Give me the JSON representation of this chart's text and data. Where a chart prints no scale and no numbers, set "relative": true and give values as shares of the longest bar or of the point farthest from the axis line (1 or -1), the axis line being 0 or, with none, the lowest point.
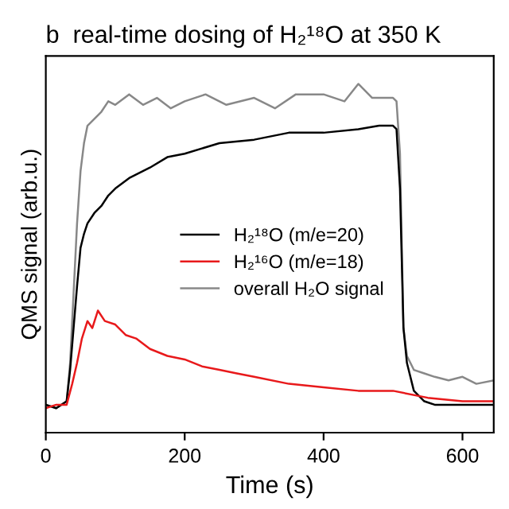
{
  "chart_data": {
    "type": "line",
    "title": "b  real-time dosing of H₂¹⁸O at 350 K",
    "xlabel": "Time (s)",
    "ylabel": "QMS signal (arb.u.)",
    "relative": true,
    "xlim": [
      0,
      645
    ],
    "xticks": [
      0,
      200,
      400,
      600
    ],
    "grid": false,
    "legend": "right",
    "marker": "none",
    "line_style": "solid",
    "series": [
      {
        "name": "overall H₂O signal",
        "color": "#888888",
        "x": [
          0,
          15,
          30,
          35,
          40,
          45,
          50,
          55,
          60,
          70,
          80,
          90,
          100,
          120,
          140,
          160,
          180,
          200,
          230,
          260,
          300,
          330,
          360,
          400,
          430,
          450,
          470,
          500,
          505,
          510,
          515,
          520,
          530,
          545,
          560,
          580,
          600,
          620,
          645
        ],
        "values": [
          0.08,
          0.07,
          0.09,
          0.2,
          0.4,
          0.6,
          0.75,
          0.83,
          0.88,
          0.9,
          0.92,
          0.95,
          0.94,
          0.97,
          0.94,
          0.96,
          0.93,
          0.95,
          0.97,
          0.94,
          0.96,
          0.93,
          0.97,
          0.97,
          0.95,
          1.0,
          0.96,
          0.96,
          0.95,
          0.8,
          0.3,
          0.22,
          0.18,
          0.17,
          0.16,
          0.15,
          0.16,
          0.14,
          0.15
        ]
      },
      {
        "name": "H₂¹⁸O (m/e=20)",
        "color": "#000000",
        "x": [
          0,
          15,
          30,
          35,
          40,
          45,
          50,
          55,
          60,
          70,
          80,
          90,
          100,
          120,
          150,
          175,
          200,
          250,
          300,
          350,
          400,
          450,
          480,
          500,
          505,
          510,
          515,
          520,
          530,
          545,
          560,
          600,
          645
        ],
        "values": [
          0.08,
          0.07,
          0.09,
          0.18,
          0.3,
          0.42,
          0.53,
          0.57,
          0.6,
          0.63,
          0.65,
          0.68,
          0.7,
          0.73,
          0.76,
          0.79,
          0.8,
          0.83,
          0.84,
          0.86,
          0.86,
          0.87,
          0.88,
          0.88,
          0.87,
          0.7,
          0.3,
          0.2,
          0.12,
          0.09,
          0.08,
          0.08,
          0.08
        ]
      },
      {
        "name": "H₂¹⁶O (m/e=18)",
        "color": "#e8191b",
        "x": [
          0,
          15,
          30,
          38,
          45,
          52,
          60,
          67,
          75,
          85,
          100,
          115,
          130,
          150,
          175,
          200,
          225,
          250,
          275,
          300,
          350,
          400,
          450,
          500,
          550,
          600,
          645
        ],
        "values": [
          0.07,
          0.08,
          0.08,
          0.14,
          0.2,
          0.27,
          0.32,
          0.3,
          0.35,
          0.32,
          0.31,
          0.28,
          0.27,
          0.24,
          0.22,
          0.21,
          0.19,
          0.18,
          0.17,
          0.16,
          0.14,
          0.13,
          0.12,
          0.12,
          0.1,
          0.09,
          0.09
        ]
      }
    ]
  }
}
